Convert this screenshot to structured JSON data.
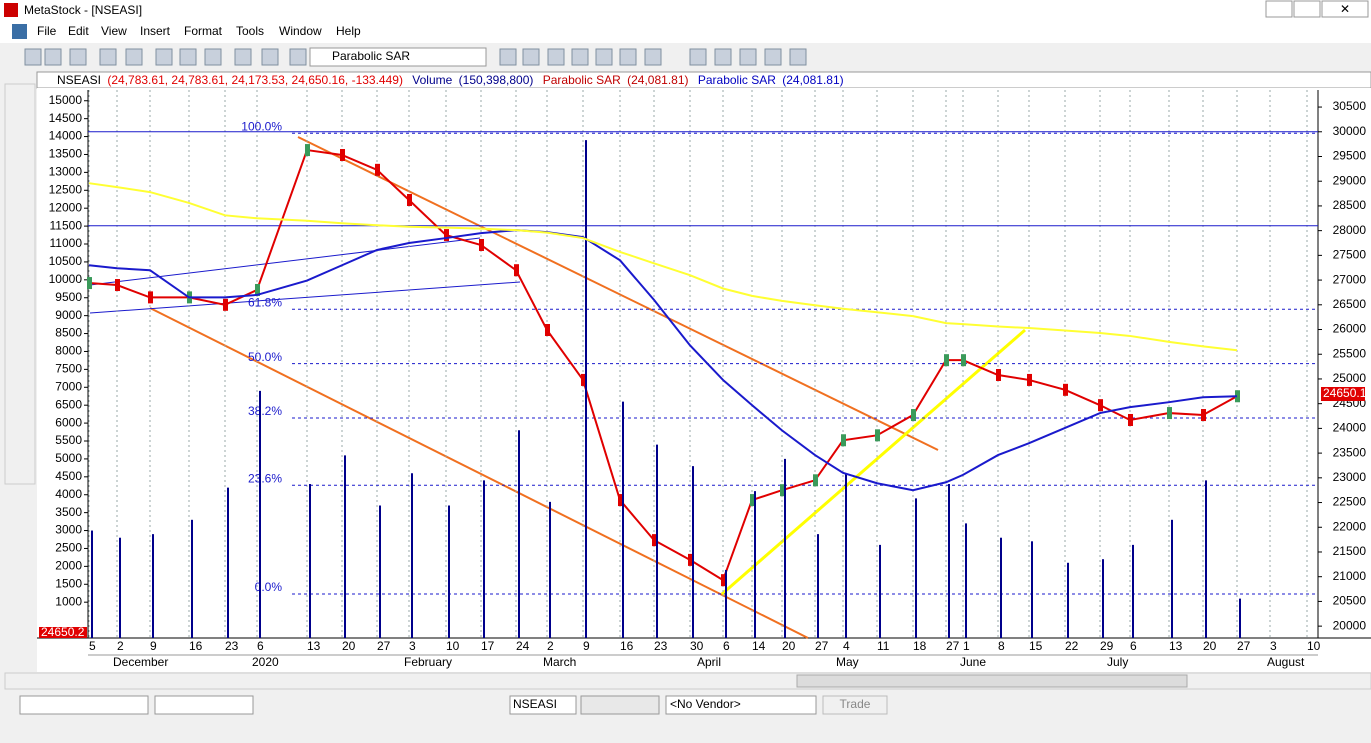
{
  "window": {
    "title": "MetaStock - [NSEASI]"
  },
  "menu": [
    "File",
    "Edit",
    "View",
    "Insert",
    "Format",
    "Tools",
    "Window",
    "Help"
  ],
  "toolbar": {
    "indicator": "Parabolic SAR"
  },
  "bottom_bar": {
    "symbol": "NSEASI",
    "vendor": "<No Vendor>",
    "button": "Trade"
  },
  "chart_data": {
    "type": "line",
    "series": [
      {
        "name": "NSEASI",
        "params": "(24,783.61, 24,783.61, 24,173.53, 24,650.16, -133.449)",
        "color": "#e00000",
        "axis": "y2",
        "values": [
          26940,
          26900,
          26650,
          26650,
          26500,
          26800,
          29630,
          29530,
          29230,
          28620,
          27910,
          27710,
          27200,
          25990,
          24980,
          22550,
          21740,
          21340,
          20930,
          22550,
          22750,
          22950,
          23760,
          23860,
          24270,
          25380,
          25380,
          25080,
          24980,
          24780,
          24470,
          24170,
          24310,
          24270,
          24650
        ]
      },
      {
        "name": "Volume",
        "params": "(150,398,800)",
        "color": "#00008b",
        "axis": "y",
        "values": [
          3000,
          2800,
          2900,
          3300,
          4200,
          6900,
          4300,
          5100,
          3700,
          4600,
          3700,
          4400,
          5800,
          3800,
          13900,
          6600,
          5400,
          4800,
          1900,
          4100,
          5000,
          2900,
          4600,
          2600,
          3900,
          4300,
          3200,
          2800,
          2700,
          2100,
          2200,
          2600,
          3300,
          4400,
          1100
        ]
      }
    ],
    "indicators": [
      {
        "name": "Parabolic SAR",
        "params": "(24,081.81)",
        "color": "#c00000"
      },
      {
        "name": "Parabolic SAR",
        "params": "(24,081.81)",
        "color": "#0000c0"
      }
    ],
    "overlays": [
      {
        "color": "#1a1acc",
        "values": [
          27300,
          27240,
          27200,
          26650,
          26650,
          26700,
          26990,
          27300,
          27610,
          27750,
          27850,
          27950,
          28010,
          27970,
          27870,
          27400,
          26600,
          25680,
          24980,
          24470,
          23960,
          23460,
          23100,
          22890,
          22750,
          22910,
          23060,
          23460,
          23700,
          24010,
          24310,
          24430,
          24530,
          24630,
          24650
        ]
      },
      {
        "color": "#ffff33",
        "values": [
          28960,
          28880,
          28780,
          28560,
          28310,
          28250,
          28200,
          28150,
          28110,
          28080,
          28060,
          28040,
          28010,
          27960,
          27850,
          27570,
          27340,
          27100,
          26830,
          26680,
          26580,
          26490,
          26420,
          26350,
          26270,
          26130,
          26110,
          26060,
          26030,
          25980,
          25930,
          25870,
          25750,
          25660,
          25580
        ]
      }
    ],
    "categories": [
      "5",
      "2",
      "9",
      "16",
      "23",
      "6",
      "13",
      "20",
      "27",
      "3",
      "10",
      "17",
      "24",
      "2",
      "9",
      "16",
      "23",
      "30",
      "6",
      "14",
      "20",
      "27",
      "4",
      "11",
      "18",
      "27",
      "1",
      "8",
      "15",
      "22",
      "29",
      "6",
      "13",
      "20",
      "27"
    ],
    "extra_dates": [
      "3",
      "10"
    ],
    "months": [
      "December",
      "2020",
      "February",
      "March",
      "April",
      "May",
      "June",
      "July",
      "August"
    ],
    "ylim": [
      0,
      15300
    ],
    "yticks": [
      15000,
      14500,
      14000,
      13500,
      13000,
      12500,
      12000,
      11500,
      11000,
      10500,
      10000,
      9500,
      9000,
      8500,
      8000,
      7500,
      7000,
      6500,
      6000,
      5500,
      5000,
      4500,
      4000,
      3500,
      3000,
      2500,
      2000,
      1500,
      1000
    ],
    "y2lim": [
      19760,
      30845
    ],
    "y2ticks": [
      30500,
      30000,
      29500,
      29000,
      28500,
      28000,
      27500,
      27000,
      26500,
      26000,
      25500,
      25000,
      24500,
      24000,
      23500,
      23000,
      22500,
      22000,
      21500,
      21000,
      20500,
      20000
    ],
    "fib_levels": [
      {
        "value": 29970,
        "label": "100.0%"
      },
      {
        "value": 26410,
        "label": "61.8%"
      },
      {
        "value": 25310,
        "label": "50.0%"
      },
      {
        "value": 24210,
        "label": "38.2%"
      },
      {
        "value": 22850,
        "label": "23.6%"
      },
      {
        "value": 20650,
        "label": "0.0%"
      }
    ],
    "hlines": [
      30000,
      28100
    ],
    "last_price_label": "24650.1",
    "left_price_label": "24650.2"
  }
}
